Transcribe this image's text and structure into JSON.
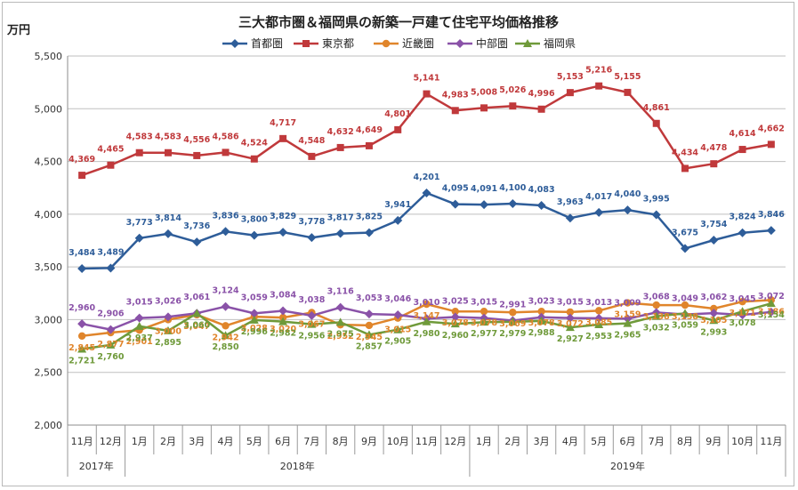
{
  "chart_data": {
    "type": "line",
    "title": "三大都市圏＆福岡県の新築一戸建て住宅平均価格推移",
    "ylabel": "万円",
    "ylim": [
      2000,
      5500
    ],
    "yticks": [
      "2,000",
      "2,500",
      "3,000",
      "3,500",
      "4,000",
      "4,500",
      "5,000",
      "5,500"
    ],
    "ytick_values": [
      2000,
      2500,
      3000,
      3500,
      4000,
      4500,
      5000,
      5500
    ],
    "grid": true,
    "legend_position": "top",
    "categories": [
      "11月",
      "12月",
      "1月",
      "2月",
      "3月",
      "4月",
      "5月",
      "6月",
      "7月",
      "8月",
      "9月",
      "10月",
      "11月",
      "12月",
      "1月",
      "2月",
      "3月",
      "4月",
      "5月",
      "6月",
      "7月",
      "8月",
      "9月",
      "10月",
      "11月"
    ],
    "year_groups": [
      {
        "label": "2017年",
        "start": 0,
        "end": 1
      },
      {
        "label": "2018年",
        "start": 2,
        "end": 13
      },
      {
        "label": "2019年",
        "start": 14,
        "end": 24
      }
    ],
    "series": [
      {
        "name": "首都圏",
        "color": "#2e5d99",
        "marker": "diamond",
        "values": [
          3484,
          3489,
          3773,
          3814,
          3736,
          3836,
          3800,
          3829,
          3778,
          3817,
          3825,
          3941,
          4201,
          4095,
          4091,
          4100,
          4083,
          3963,
          4017,
          4040,
          3995,
          3675,
          3754,
          3824,
          3846
        ],
        "labels": [
          "3,484",
          "3,489",
          "3,773",
          "3,814",
          "3,736",
          "3,836",
          "3,800",
          "3,829",
          "3,778",
          "3,817",
          "3,825",
          "3,941",
          "4,201",
          "4,095",
          "4,091",
          "4,100",
          "4,083",
          "3,963",
          "4,017",
          "4,040",
          "3,995",
          "3,675",
          "3,754",
          "3,824",
          "3,846"
        ]
      },
      {
        "name": "東京都",
        "color": "#c0393b",
        "marker": "square",
        "values": [
          4369,
          4465,
          4583,
          4583,
          4556,
          4586,
          4524,
          4717,
          4548,
          4632,
          4649,
          4801,
          5141,
          4983,
          5008,
          5026,
          4996,
          5153,
          5216,
          5155,
          4861,
          4434,
          4478,
          4614,
          4662
        ],
        "labels": [
          "4,369",
          "4,465",
          "4,583",
          "4,583",
          "4,556",
          "4,586",
          "4,524",
          "4,717",
          "4,548",
          "4,632",
          "4,649",
          "4,801",
          "5,141",
          "4,983",
          "5,008",
          "5,026",
          "4,996",
          "5,153",
          "5,216",
          "5,155",
          "4,861",
          "4,434",
          "4,478",
          "4,614",
          "4,662"
        ]
      },
      {
        "name": "近畿圏",
        "color": "#e0852b",
        "marker": "circle",
        "values": [
          2845,
          2877,
          2901,
          3000,
          3047,
          2942,
          3028,
          3020,
          3067,
          2952,
          2945,
          3015,
          3147,
          3078,
          3078,
          3069,
          3078,
          3072,
          3085,
          3159,
          3138,
          3138,
          3105,
          3171,
          3186
        ],
        "labels": [
          "2,845",
          "2,877",
          "2,901",
          "3,000",
          "3,047",
          "2,942",
          "3,028",
          "3,020",
          "3,067",
          "2,952",
          "2,945",
          "3,015",
          "3,147",
          "3,078",
          "3,078",
          "3,069",
          "3,078",
          "3,072",
          "3,085",
          "3,159",
          "3,138",
          "3,138",
          "3,105",
          "3,171",
          "3,186"
        ]
      },
      {
        "name": "中部圏",
        "color": "#8a52a8",
        "marker": "diamond",
        "values": [
          2960,
          2906,
          3015,
          3026,
          3061,
          3124,
          3059,
          3084,
          3038,
          3116,
          3053,
          3046,
          3010,
          3025,
          3015,
          2991,
          3023,
          3015,
          3013,
          3009,
          3068,
          3049,
          3062,
          3045,
          3072
        ],
        "labels": [
          "2,960",
          "2,906",
          "3,015",
          "3,026",
          "3,061",
          "3,124",
          "3,059",
          "3,084",
          "3,038",
          "3,116",
          "3,053",
          "3,046",
          "3,010",
          "3,025",
          "3,015",
          "2,991",
          "3,023",
          "3,015",
          "3,013",
          "3,009",
          "3,068",
          "3,049",
          "3,062",
          "3,045",
          "3,072"
        ]
      },
      {
        "name": "福岡県",
        "color": "#6f9a3a",
        "marker": "triangle",
        "values": [
          2721,
          2760,
          2937,
          2895,
          3060,
          2850,
          2996,
          2982,
          2956,
          2975,
          2857,
          2905,
          2980,
          2960,
          2977,
          2979,
          2988,
          2927,
          2953,
          2965,
          3032,
          3059,
          2993,
          3078,
          3154
        ],
        "labels": [
          "2,721",
          "2,760",
          "2,937",
          "2,895",
          "3,060",
          "2,850",
          "2,996",
          "2,982",
          "2,956",
          "2,975",
          "2,857",
          "2,905",
          "2,980",
          "2,960",
          "2,977",
          "2,979",
          "2,988",
          "2,927",
          "2,953",
          "2,965",
          "3,032",
          "3,059",
          "2,993",
          "3,078",
          "3,154"
        ]
      }
    ]
  }
}
